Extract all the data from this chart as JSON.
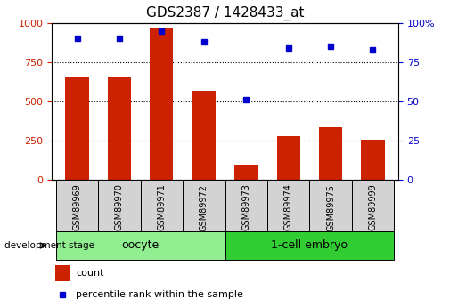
{
  "title": "GDS2387 / 1428433_at",
  "samples": [
    "GSM89969",
    "GSM89970",
    "GSM89971",
    "GSM89972",
    "GSM89973",
    "GSM89974",
    "GSM89975",
    "GSM89999"
  ],
  "counts": [
    660,
    650,
    970,
    565,
    95,
    280,
    335,
    255
  ],
  "percentiles": [
    90,
    90,
    95,
    88,
    51,
    84,
    85,
    83
  ],
  "groups": [
    {
      "label": "oocyte",
      "start": 0,
      "end": 4,
      "color": "#90EE90"
    },
    {
      "label": "1-cell embryo",
      "start": 4,
      "end": 8,
      "color": "#90EE90"
    }
  ],
  "bar_color": "#CC2200",
  "dot_color": "#0000CC",
  "ylim_left": [
    0,
    1000
  ],
  "ylim_right": [
    0,
    100
  ],
  "yticks_left": [
    0,
    250,
    500,
    750,
    1000
  ],
  "yticks_right": [
    0,
    25,
    50,
    75,
    100
  ],
  "grid_color": "black",
  "sample_box_color": "#D3D3D3",
  "legend_count_color": "#CC2200",
  "legend_pct_color": "#0000CC",
  "title_fontsize": 11,
  "axis_label_color_left": "#CC2200",
  "axis_label_color_right": "#0000CC",
  "tick_fontsize": 8,
  "oocyte_color": "#90EE90",
  "embryo_color": "#32CD32"
}
